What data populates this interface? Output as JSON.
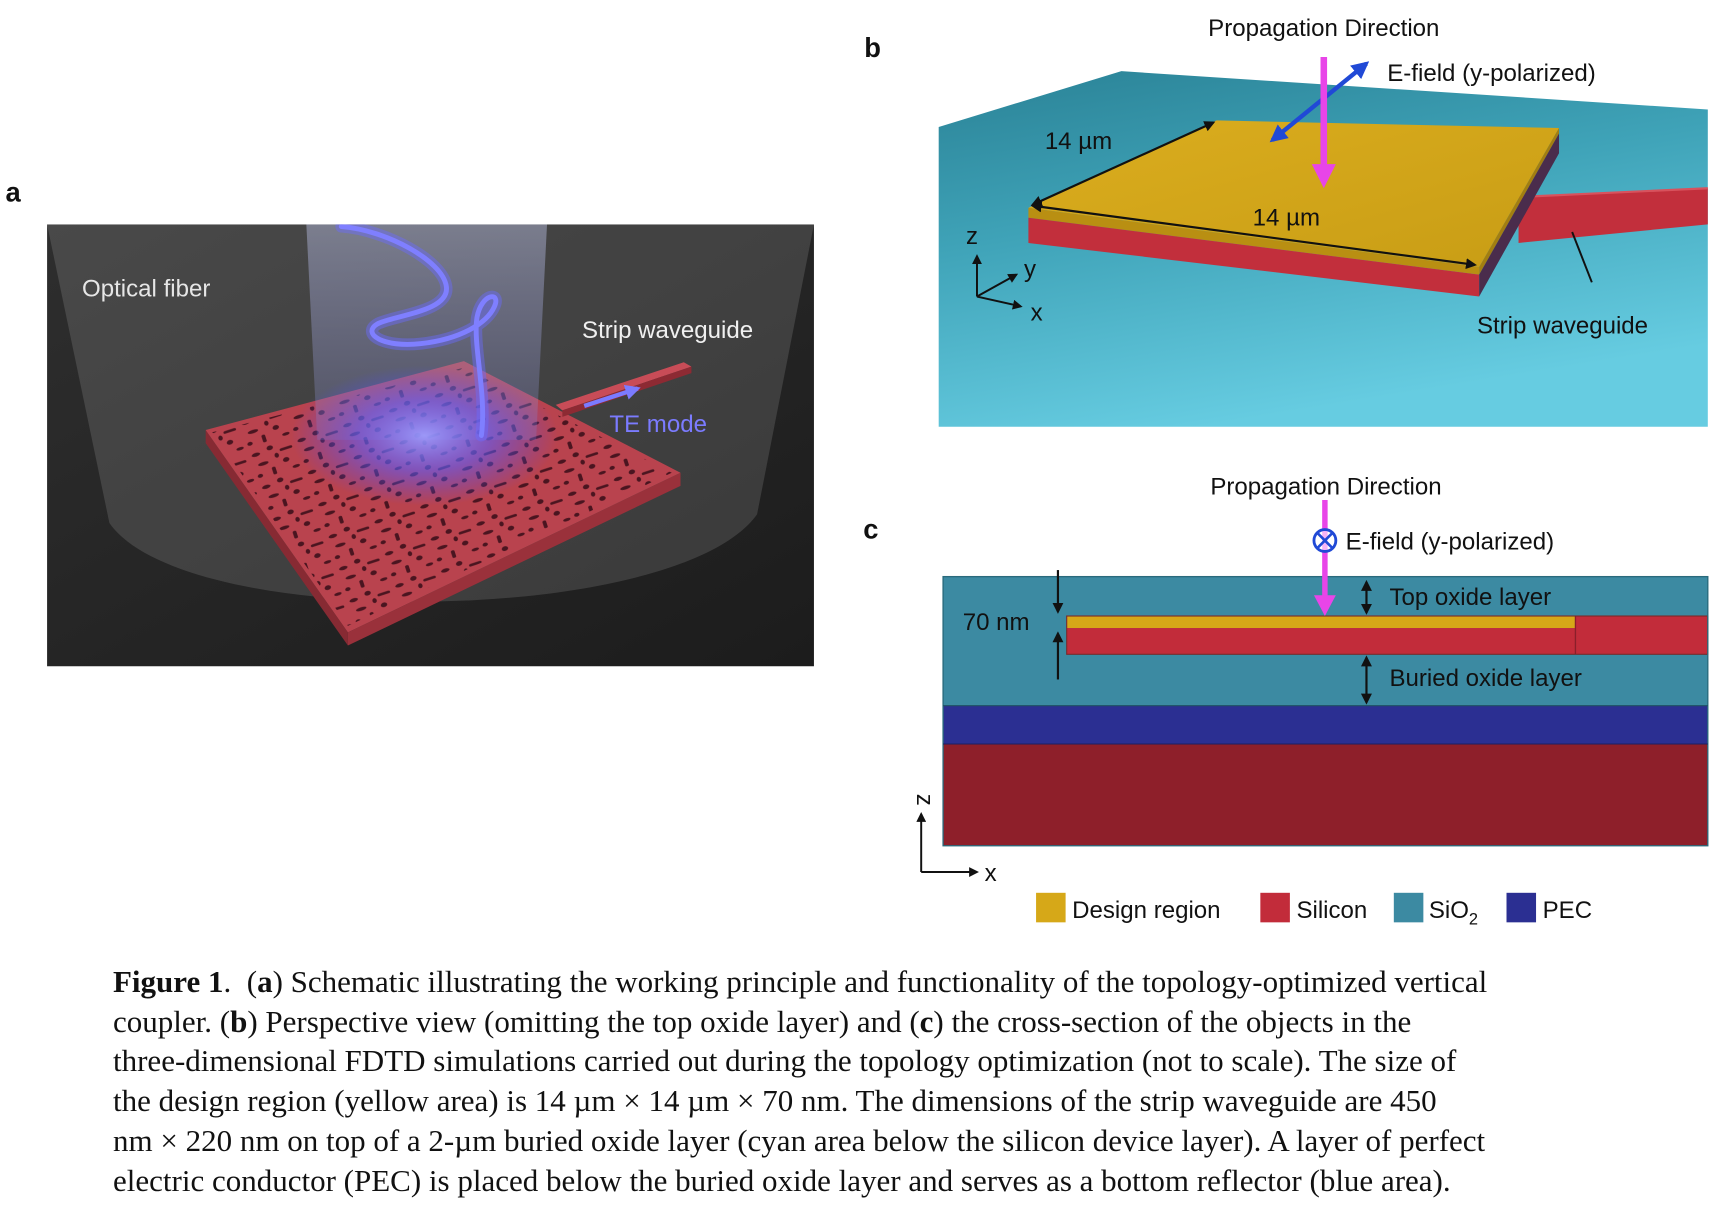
{
  "figure": {
    "panel_a": {
      "label": "a",
      "fiber_label": "Optical fiber",
      "waveguide_label": "Strip waveguide",
      "mode_label": "TE mode"
    },
    "panel_b": {
      "label": "b",
      "propagation_label": "Propagation Direction",
      "efield_label": "E-field (y-polarized)",
      "dim_side": "14 µm",
      "dim_front": "14 µm",
      "axis_z": "z",
      "axis_y": "y",
      "axis_x": "x",
      "waveguide_label": "Strip waveguide"
    },
    "panel_c": {
      "label": "c",
      "propagation_label": "Propagation Direction",
      "efield_icon": "circled-times-icon",
      "efield_label": "E-field (y-polarized)",
      "thickness_label": "70 nm",
      "top_oxide_label": "Top oxide layer",
      "buried_oxide_label": "Buried oxide layer",
      "axis_z": "z",
      "axis_x": "x"
    },
    "legend": {
      "items": [
        {
          "label": "Design region",
          "color": "#d6a818"
        },
        {
          "label": "Silicon",
          "color": "#c22c3a"
        },
        {
          "label": "SiO",
          "subscript": "2",
          "color": "#3c8aa2"
        },
        {
          "label": "PEC",
          "color": "#2b2f92"
        }
      ]
    },
    "colors": {
      "propagation": "#e845e8",
      "efield": "#2049d6",
      "te_mode": "#7b7bff",
      "substrate": "#8e1f2a"
    }
  },
  "caption": {
    "lines": [
      [
        {
          "text": "Figure 1",
          "bold": true
        },
        {
          "text": ".  ("
        },
        {
          "text": "a",
          "bold": true
        },
        {
          "text": ") Schematic illustrating the working principle and functionality of the topology-optimized vertical"
        }
      ],
      [
        {
          "text": "coupler. ("
        },
        {
          "text": "b",
          "bold": true
        },
        {
          "text": ") Perspective view (omitting the top oxide layer) and ("
        },
        {
          "text": "c",
          "bold": true
        },
        {
          "text": ") the cross-section of the objects in the"
        }
      ],
      [
        {
          "text": "three-dimensional FDTD simulations carried out during the topology optimization (not to scale). The size of"
        }
      ],
      [
        {
          "text": "the design region (yellow area) is 14 µm × 14 µm × 70 nm. The dimensions of the strip waveguide are 450"
        }
      ],
      [
        {
          "text": "nm × 220 nm on top of a 2-µm buried oxide layer (cyan area below the silicon device layer). A layer of perfect"
        }
      ],
      [
        {
          "text": "electric conductor (PEC) is placed below the buried oxide layer and serves as a bottom reflector (blue area)."
        }
      ]
    ]
  }
}
